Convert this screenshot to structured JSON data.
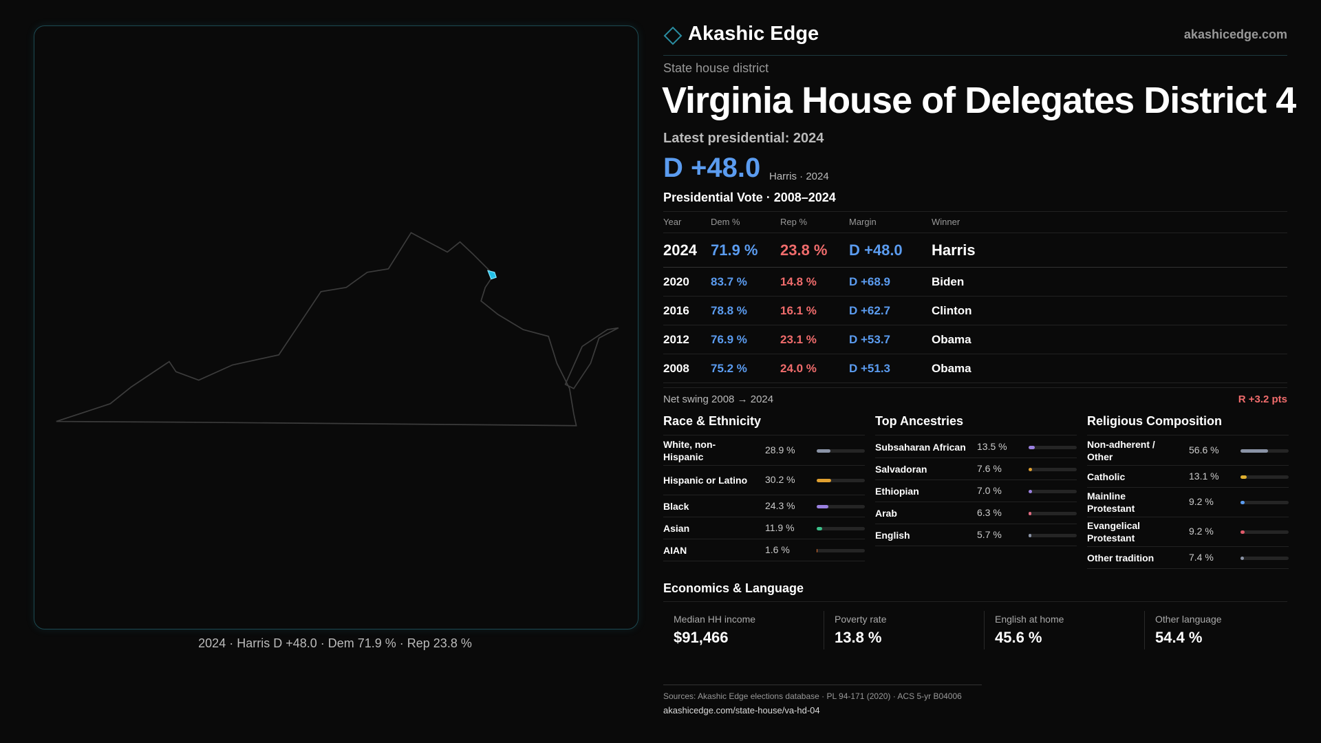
{
  "header": {
    "brand": "Akashic Edge",
    "site": "akashicedge.com"
  },
  "district": {
    "kind": "State house district",
    "title": "Virginia House of Delegates District 4",
    "latest_label": "Latest presidential: 2024",
    "margin": "D +48.0",
    "margin_note": "Harris · 2024"
  },
  "map": {
    "caption": "2024 · Harris D +48.0 · Dem 71.9 % · Rep 23.8 %"
  },
  "table": {
    "title": "Presidential Vote · 2008–2024",
    "columns": [
      "Year",
      "Dem %",
      "Rep %",
      "Margin",
      "Winner"
    ],
    "rows": [
      [
        "2024",
        "71.9 %",
        "23.8 %",
        "D +48.0",
        "Harris"
      ],
      [
        "2020",
        "83.7 %",
        "14.8 %",
        "D +68.9",
        "Biden"
      ],
      [
        "2016",
        "78.8 %",
        "16.1 %",
        "D +62.7",
        "Clinton"
      ],
      [
        "2012",
        "76.9 %",
        "23.1 %",
        "D +53.7",
        "Obama"
      ],
      [
        "2008",
        "75.2 %",
        "24.0 %",
        "D +51.3",
        "Obama"
      ]
    ]
  },
  "swing": {
    "label": "Net swing 2008 → 2024",
    "value": "R +3.2 pts"
  },
  "sections": [
    {
      "title": "Race & Ethnicity",
      "rows": [
        {
          "label": "White, non-Hispanic",
          "value": 28.9,
          "value_label": "28.9 %",
          "color": "#8a93a6"
        },
        {
          "label": "Hispanic or Latino",
          "value": 30.2,
          "value_label": "30.2 %",
          "color": "#e0a030"
        },
        {
          "label": "Black",
          "value": 24.3,
          "value_label": "24.3 %",
          "color": "#9a80e0"
        },
        {
          "label": "Asian",
          "value": 11.9,
          "value_label": "11.9 %",
          "color": "#3cc08a"
        },
        {
          "label": "AIAN",
          "value": 1.6,
          "value_label": "1.6 %",
          "color": "#e07030"
        }
      ]
    },
    {
      "title": "Top Ancestries",
      "rows": [
        {
          "label": "Subsaharan African",
          "value": 13.5,
          "value_label": "13.5 %",
          "color": "#9a80e0"
        },
        {
          "label": "Salvadoran",
          "value": 7.6,
          "value_label": "7.6 %",
          "color": "#e0a030"
        },
        {
          "label": "Ethiopian",
          "value": 7.0,
          "value_label": "7.0 %",
          "color": "#9a80e0"
        },
        {
          "label": "Arab",
          "value": 6.3,
          "value_label": "6.3 %",
          "color": "#e06a80"
        },
        {
          "label": "English",
          "value": 5.7,
          "value_label": "5.7 %",
          "color": "#8a93a6"
        }
      ]
    },
    {
      "title": "Religious Composition",
      "rows": [
        {
          "label": "Non-adherent / Other",
          "value": 56.6,
          "value_label": "56.6 %",
          "color": "#8a93a6"
        },
        {
          "label": "Catholic",
          "value": 13.1,
          "value_label": "13.1 %",
          "color": "#e0b030"
        },
        {
          "label": "Mainline Protestant",
          "value": 9.2,
          "value_label": "9.2 %",
          "color": "#5b9cf0"
        },
        {
          "label": "Evangelical Protestant",
          "value": 9.2,
          "value_label": "9.2 %",
          "color": "#e05a6a"
        },
        {
          "label": "Other tradition",
          "value": 7.4,
          "value_label": "7.4 %",
          "color": "#8a93a6"
        }
      ]
    }
  ],
  "economics": {
    "title": "Economics & Language",
    "items": [
      {
        "label": "Median HH income",
        "value": "$91,466"
      },
      {
        "label": "Poverty rate",
        "value": "13.8 %"
      },
      {
        "label": "English at home",
        "value": "45.6 %"
      },
      {
        "label": "Other language",
        "value": "54.4 %"
      }
    ]
  },
  "footer": {
    "sources": "Sources: Akashic Edge elections database · PL 94-171 (2020) · ACS 5-yr B04006",
    "url": "akashicedge.com/state-house/va-hd-04"
  }
}
